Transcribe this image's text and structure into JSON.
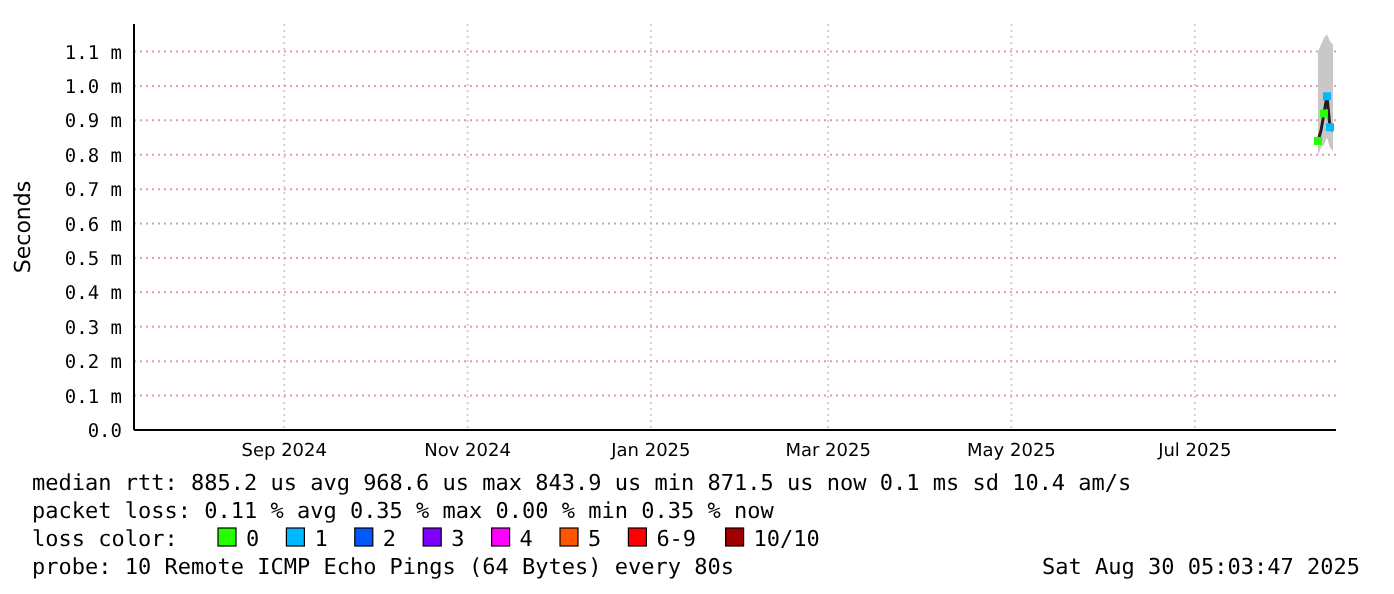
{
  "chart_data": {
    "type": "line",
    "ylabel": "Seconds",
    "x": [
      "2025-08-25",
      "2025-08-26",
      "2025-08-27",
      "2025-08-28",
      "2025-08-29",
      "2025-08-30"
    ],
    "series": [
      {
        "color": "#202020",
        "values": [
          0.84,
          0.87,
          0.92,
          0.97,
          0.88,
          0.87
        ],
        "lower": [
          0.8,
          0.82,
          0.83,
          0.85,
          0.82,
          0.81
        ],
        "upper": [
          1.1,
          1.12,
          1.14,
          1.15,
          1.13,
          1.12
        ]
      },
      {
        "type": "scatter",
        "marker": "square",
        "name": "0",
        "color": "#26ff00",
        "values": [
          0.84,
          null,
          0.92,
          null,
          null,
          null
        ]
      },
      {
        "type": "scatter",
        "marker": "square",
        "name": "1",
        "color": "#00b8ff",
        "values": [
          null,
          null,
          null,
          0.97,
          0.88,
          null
        ]
      },
      {
        "type": "scatter",
        "name": "2",
        "color": "#0059ff",
        "values": [
          null,
          null,
          null,
          null,
          null,
          null
        ]
      },
      {
        "type": "scatter",
        "name": "3",
        "color": "#7e00ff",
        "values": [
          null,
          null,
          null,
          null,
          null,
          null
        ]
      },
      {
        "type": "scatter",
        "name": "4",
        "color": "#ff00ff",
        "values": [
          null,
          null,
          null,
          null,
          null,
          null
        ]
      },
      {
        "type": "scatter",
        "name": "5",
        "color": "#ff5500",
        "values": [
          null,
          null,
          null,
          null,
          null,
          null
        ]
      },
      {
        "type": "scatter",
        "name": "6-9",
        "color": "#ff0000",
        "values": [
          null,
          null,
          null,
          null,
          null,
          null
        ]
      },
      {
        "type": "scatter",
        "name": "10/10",
        "color": "#a10000",
        "values": [
          null,
          null,
          null,
          null,
          null,
          null
        ]
      }
    ],
    "xlim": [
      "2024-07-27",
      "2025-08-31"
    ],
    "xticks": [
      {
        "value": "2024-09-15",
        "label": "Sep 2024"
      },
      {
        "value": "2024-11-15",
        "label": "Nov 2024"
      },
      {
        "value": "2025-01-15",
        "label": "Jan 2025"
      },
      {
        "value": "2025-03-15",
        "label": "Mar 2025"
      },
      {
        "value": "2025-05-15",
        "label": "May 2025"
      },
      {
        "value": "2025-07-15",
        "label": "Jul 2025"
      }
    ],
    "ylim": [
      0,
      1.18
    ],
    "yticks": [
      {
        "value": 0,
        "label": "0.0"
      },
      {
        "value": 0.1,
        "label": "0.1 m"
      },
      {
        "value": 0.2,
        "label": "0.2 m"
      },
      {
        "value": 0.3,
        "label": "0.3 m"
      },
      {
        "value": 0.4,
        "label": "0.4 m"
      },
      {
        "value": 0.5,
        "label": "0.5 m"
      },
      {
        "value": 0.6,
        "label": "0.6 m"
      },
      {
        "value": 0.7,
        "label": "0.7 m"
      },
      {
        "value": 0.8,
        "label": "0.8 m"
      },
      {
        "value": 0.9,
        "label": "0.9 m"
      },
      {
        "value": 1.0,
        "label": "1.0 m"
      },
      {
        "value": 1.1,
        "label": "1.1 m"
      }
    ],
    "grid": true,
    "legend": "bottom",
    "legend_title": "loss color:",
    "annotations": [
      "median rtt:  885.2 us avg  968.6 us max  843.9 us min  871.5 us now  0.1 ms sd  10.4   am/s",
      "packet loss: 0.11 % avg  0.35 % max  0.00 % min  0.35 % now",
      "probe:       10 Remote ICMP Echo Pings (64 Bytes) every 80s",
      "Sat Aug 30 05:03:47 2025"
    ]
  }
}
